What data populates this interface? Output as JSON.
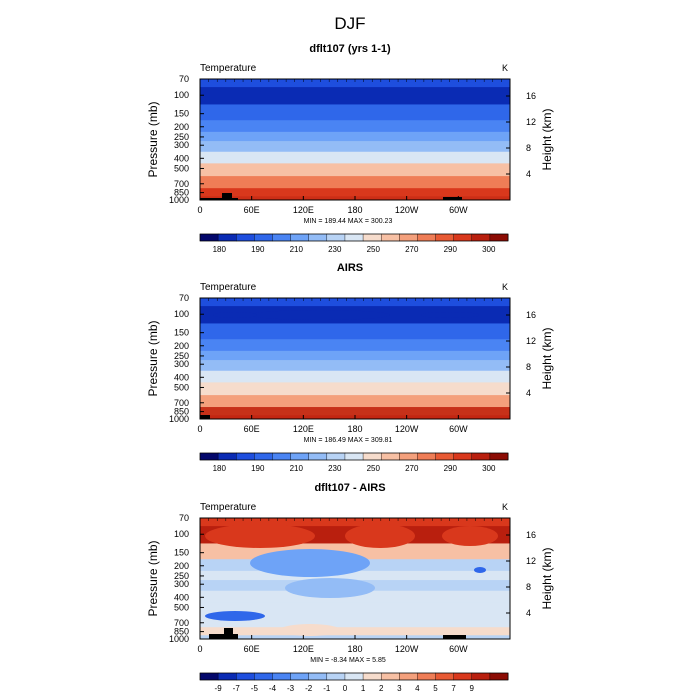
{
  "figure": {
    "title": "DJF"
  },
  "chart_data": [
    {
      "type": "heatmap",
      "title": "dflt107 (yrs 1-1)",
      "variable_label": "Temperature",
      "units": "K",
      "ylabel": "Pressure (mb)",
      "y2label": "Height (km)",
      "x_ticks": [
        "0",
        "60E",
        "120E",
        "180",
        "120W",
        "60W"
      ],
      "y_ticks": [
        "70",
        "100",
        "150",
        "200",
        "250",
        "300",
        "400",
        "500",
        "700",
        "850",
        "1000"
      ],
      "height_ticks": [
        "16",
        "12",
        "8",
        "4"
      ],
      "stats_text": "MIN = 189.44   MAX = 300.23",
      "min": 189.44,
      "max": 300.23,
      "colorbar_labels": [
        "180",
        "190",
        "210",
        "230",
        "250",
        "270",
        "290",
        "300"
      ],
      "colorbar_colors": [
        "#03076b",
        "#0a2bb4",
        "#1e4ede",
        "#2f67ea",
        "#4a84f3",
        "#6ea3f7",
        "#93bcf6",
        "#b8d3f5",
        "#d9e6f4",
        "#f6dccc",
        "#f7c0a4",
        "#f4a07c",
        "#ef7d56",
        "#e85a34",
        "#d9381c",
        "#b91f0e",
        "#8c0c04"
      ],
      "levels_top_to_bottom": [
        {
          "pressure": 70,
          "value": 208
        },
        {
          "pressure": 100,
          "value": 200
        },
        {
          "pressure": 150,
          "value": 212
        },
        {
          "pressure": 200,
          "value": 219
        },
        {
          "pressure": 250,
          "value": 226
        },
        {
          "pressure": 300,
          "value": 234
        },
        {
          "pressure": 400,
          "value": 248
        },
        {
          "pressure": 500,
          "value": 258
        },
        {
          "pressure": 700,
          "value": 273
        },
        {
          "pressure": 850,
          "value": 282
        },
        {
          "pressure": 1000,
          "value": 289
        }
      ]
    },
    {
      "type": "heatmap",
      "title": "AIRS",
      "variable_label": "Temperature",
      "units": "K",
      "ylabel": "Pressure (mb)",
      "y2label": "Height (km)",
      "x_ticks": [
        "0",
        "60E",
        "120E",
        "180",
        "120W",
        "60W"
      ],
      "y_ticks": [
        "70",
        "100",
        "150",
        "200",
        "250",
        "300",
        "400",
        "500",
        "700",
        "850",
        "1000"
      ],
      "height_ticks": [
        "16",
        "12",
        "8",
        "4"
      ],
      "stats_text": "MIN = 186.49   MAX = 309.81",
      "min": 186.49,
      "max": 309.81,
      "colorbar_labels": [
        "180",
        "190",
        "210",
        "230",
        "250",
        "270",
        "290",
        "300"
      ],
      "colorbar_colors": [
        "#03076b",
        "#0a2bb4",
        "#1e4ede",
        "#2f67ea",
        "#4a84f3",
        "#6ea3f7",
        "#93bcf6",
        "#b8d3f5",
        "#d9e6f4",
        "#f6dccc",
        "#f7c0a4",
        "#f4a07c",
        "#ef7d56",
        "#e85a34",
        "#d9381c",
        "#b91f0e",
        "#8c0c04"
      ],
      "levels_top_to_bottom": [
        {
          "pressure": 70,
          "value": 205
        },
        {
          "pressure": 100,
          "value": 196
        },
        {
          "pressure": 150,
          "value": 210
        },
        {
          "pressure": 200,
          "value": 218
        },
        {
          "pressure": 250,
          "value": 225
        },
        {
          "pressure": 300,
          "value": 233
        },
        {
          "pressure": 400,
          "value": 247
        },
        {
          "pressure": 500,
          "value": 257
        },
        {
          "pressure": 700,
          "value": 272
        },
        {
          "pressure": 850,
          "value": 283
        },
        {
          "pressure": 1000,
          "value": 291
        }
      ]
    },
    {
      "type": "heatmap",
      "title": "dflt107 - AIRS",
      "variable_label": "Temperature",
      "units": "K",
      "ylabel": "Pressure (mb)",
      "y2label": "Height (km)",
      "x_ticks": [
        "0",
        "60E",
        "120E",
        "180",
        "120W",
        "60W"
      ],
      "y_ticks": [
        "70",
        "100",
        "150",
        "200",
        "250",
        "300",
        "400",
        "500",
        "700",
        "850",
        "1000"
      ],
      "height_ticks": [
        "16",
        "12",
        "8",
        "4"
      ],
      "stats_text": "MIN =   -8.34   MAX =    5.85",
      "min": -8.34,
      "max": 5.85,
      "colorbar_labels": [
        "-9",
        "-7",
        "-5",
        "-4",
        "-3",
        "-2",
        "-1",
        "0",
        "1",
        "2",
        "3",
        "4",
        "5",
        "7",
        "9"
      ],
      "colorbar_colors": [
        "#03076b",
        "#0a2bb4",
        "#1e4ede",
        "#2f67ea",
        "#4a84f3",
        "#6ea3f7",
        "#93bcf6",
        "#b8d3f5",
        "#d9e6f4",
        "#f6dccc",
        "#f7c0a4",
        "#f4a07c",
        "#ef7d56",
        "#e85a34",
        "#d9381c",
        "#b91f0e",
        "#8c0c04"
      ],
      "levels_top_to_bottom": [
        {
          "pressure": 70,
          "value": 3.5
        },
        {
          "pressure": 100,
          "value": 4.2
        },
        {
          "pressure": 150,
          "value": 0.5
        },
        {
          "pressure": 200,
          "value": -2.2
        },
        {
          "pressure": 250,
          "value": -1.5
        },
        {
          "pressure": 300,
          "value": -1.8
        },
        {
          "pressure": 400,
          "value": -1.2
        },
        {
          "pressure": 500,
          "value": -1.4
        },
        {
          "pressure": 700,
          "value": -1.0
        },
        {
          "pressure": 850,
          "value": -0.3
        },
        {
          "pressure": 1000,
          "value": -2.4
        }
      ]
    }
  ]
}
